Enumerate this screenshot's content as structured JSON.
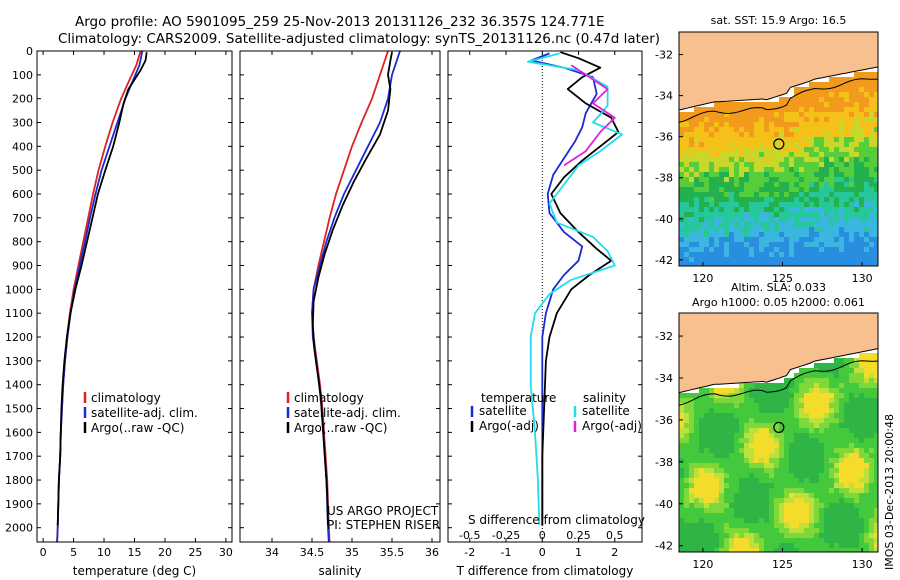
{
  "title_line1": "Argo profile: AO 5901095_259 25-Nov-2013 20131126_232 36.357S 124.771E",
  "title_line2": "Climatology: CARS2009. Satellite-adjusted climatology: synTS_20131126.nc (0.47d later)",
  "colors": {
    "climatology": "#dd2222",
    "satellite": "#1a2ad8",
    "argo": "#000000",
    "sat_salinity": "#22dcee",
    "argo_salinity": "#e020e0",
    "land": "#f7c08e"
  },
  "chart_data": [
    {
      "type": "line",
      "name": "temperature-profile",
      "xlabel": "temperature (deg C)",
      "ylabel": "",
      "xlim": [
        -1,
        31
      ],
      "ylim": [
        2060,
        0
      ],
      "y_inverted": true,
      "xticks": [
        0,
        5,
        10,
        15,
        20,
        25,
        30
      ],
      "yticks": [
        0,
        100,
        200,
        300,
        400,
        500,
        600,
        700,
        800,
        900,
        1000,
        1100,
        1200,
        1300,
        1400,
        1500,
        1600,
        1700,
        1800,
        1900,
        2000
      ],
      "legend": [
        "climatology",
        "satellite-adj. clim.",
        "Argo(..raw -QC)"
      ],
      "legend_position": "lower-right",
      "series": [
        {
          "name": "climatology",
          "color": "#dd2222",
          "points": [
            [
              16.0,
              0
            ],
            [
              15.3,
              60
            ],
            [
              14.2,
              120
            ],
            [
              12.8,
              200
            ],
            [
              11.4,
              300
            ],
            [
              10.2,
              400
            ],
            [
              9.1,
              500
            ],
            [
              8.2,
              600
            ],
            [
              7.4,
              700
            ],
            [
              6.6,
              800
            ],
            [
              5.8,
              900
            ],
            [
              5.0,
              1000
            ],
            [
              4.4,
              1100
            ],
            [
              3.9,
              1200
            ],
            [
              3.6,
              1300
            ],
            [
              3.3,
              1400
            ],
            [
              3.1,
              1500
            ],
            [
              2.9,
              1600
            ],
            [
              2.8,
              1700
            ],
            [
              2.6,
              1800
            ],
            [
              2.5,
              1900
            ],
            [
              2.4,
              2000
            ],
            [
              2.3,
              2060
            ]
          ]
        },
        {
          "name": "satellite-adj. clim.",
          "color": "#1a2ad8",
          "points": [
            [
              16.3,
              0
            ],
            [
              15.8,
              60
            ],
            [
              14.8,
              120
            ],
            [
              13.5,
              200
            ],
            [
              12.2,
              300
            ],
            [
              10.9,
              400
            ],
            [
              9.6,
              500
            ],
            [
              8.6,
              600
            ],
            [
              7.7,
              700
            ],
            [
              6.9,
              800
            ],
            [
              6.0,
              900
            ],
            [
              5.2,
              1000
            ],
            [
              4.5,
              1100
            ],
            [
              4.0,
              1200
            ],
            [
              3.6,
              1300
            ],
            [
              3.3,
              1400
            ],
            [
              3.1,
              1500
            ],
            [
              2.9,
              1600
            ],
            [
              2.8,
              1700
            ],
            [
              2.6,
              1800
            ],
            [
              2.5,
              1900
            ],
            [
              2.4,
              2000
            ],
            [
              2.3,
              2060
            ]
          ]
        },
        {
          "name": "Argo(..raw -QC)",
          "color": "#000000",
          "points": [
            [
              17.0,
              5
            ],
            [
              16.8,
              40
            ],
            [
              16.0,
              80
            ],
            [
              15.0,
              120
            ],
            [
              14.0,
              160
            ],
            [
              13.2,
              220
            ],
            [
              12.5,
              300
            ],
            [
              11.5,
              400
            ],
            [
              10.2,
              500
            ],
            [
              9.0,
              600
            ],
            [
              8.1,
              700
            ],
            [
              7.2,
              800
            ],
            [
              6.3,
              900
            ],
            [
              5.3,
              1000
            ],
            [
              4.5,
              1100
            ],
            [
              3.9,
              1200
            ],
            [
              3.5,
              1300
            ],
            [
              3.2,
              1400
            ],
            [
              3.0,
              1500
            ],
            [
              2.9,
              1600
            ],
            [
              2.8,
              1700
            ],
            [
              2.6,
              1800
            ],
            [
              2.5,
              1900
            ],
            [
              2.4,
              1990
            ]
          ]
        }
      ]
    },
    {
      "type": "line",
      "name": "salinity-profile",
      "xlabel": "salinity",
      "ylabel": "",
      "xlim": [
        33.6,
        36.1
      ],
      "ylim": [
        2060,
        0
      ],
      "y_inverted": true,
      "xticks": [
        34,
        34.5,
        35,
        35.5,
        36
      ],
      "xticklabels": [
        "34",
        "34.5",
        "35",
        "35.5",
        "36"
      ],
      "legend": [
        "climatology",
        "satellite-adj. clim.",
        "Argo(..raw -QC)"
      ],
      "legend_position": "lower-right",
      "annotation": [
        "US ARGO PROJECT",
        "PI: STEPHEN RISER"
      ],
      "series": [
        {
          "name": "climatology",
          "color": "#dd2222",
          "points": [
            [
              35.45,
              0
            ],
            [
              35.4,
              50
            ],
            [
              35.35,
              100
            ],
            [
              35.25,
              200
            ],
            [
              35.12,
              300
            ],
            [
              35.0,
              400
            ],
            [
              34.9,
              500
            ],
            [
              34.8,
              600
            ],
            [
              34.72,
              700
            ],
            [
              34.65,
              800
            ],
            [
              34.58,
              900
            ],
            [
              34.52,
              1000
            ],
            [
              34.5,
              1100
            ],
            [
              34.52,
              1200
            ],
            [
              34.56,
              1300
            ],
            [
              34.6,
              1400
            ],
            [
              34.63,
              1500
            ],
            [
              34.65,
              1600
            ],
            [
              34.67,
              1700
            ],
            [
              34.69,
              1800
            ],
            [
              34.7,
              1900
            ],
            [
              34.71,
              2000
            ],
            [
              34.72,
              2060
            ]
          ]
        },
        {
          "name": "satellite-adj. clim.",
          "color": "#1a2ad8",
          "points": [
            [
              35.6,
              0
            ],
            [
              35.55,
              50
            ],
            [
              35.5,
              100
            ],
            [
              35.45,
              200
            ],
            [
              35.35,
              300
            ],
            [
              35.2,
              400
            ],
            [
              35.05,
              500
            ],
            [
              34.9,
              600
            ],
            [
              34.78,
              700
            ],
            [
              34.68,
              800
            ],
            [
              34.6,
              900
            ],
            [
              34.52,
              1000
            ],
            [
              34.5,
              1100
            ],
            [
              34.51,
              1200
            ],
            [
              34.55,
              1300
            ],
            [
              34.59,
              1400
            ],
            [
              34.62,
              1500
            ],
            [
              34.64,
              1600
            ],
            [
              34.66,
              1700
            ],
            [
              34.68,
              1800
            ],
            [
              34.69,
              1900
            ],
            [
              34.7,
              2000
            ],
            [
              34.71,
              2060
            ]
          ]
        },
        {
          "name": "Argo(..raw -QC)",
          "color": "#000000",
          "points": [
            [
              35.5,
              5
            ],
            [
              35.48,
              40
            ],
            [
              35.45,
              100
            ],
            [
              35.48,
              160
            ],
            [
              35.45,
              250
            ],
            [
              35.35,
              350
            ],
            [
              35.18,
              450
            ],
            [
              35.02,
              550
            ],
            [
              34.88,
              650
            ],
            [
              34.76,
              750
            ],
            [
              34.66,
              850
            ],
            [
              34.58,
              950
            ],
            [
              34.52,
              1050
            ],
            [
              34.51,
              1150
            ],
            [
              34.53,
              1250
            ],
            [
              34.57,
              1350
            ],
            [
              34.61,
              1450
            ],
            [
              34.63,
              1550
            ],
            [
              34.65,
              1650
            ],
            [
              34.67,
              1750
            ],
            [
              34.69,
              1850
            ],
            [
              34.7,
              1990
            ]
          ]
        }
      ]
    },
    {
      "type": "line",
      "name": "difference-profile",
      "xlabel": "T difference from climatology",
      "xlabel_top": "S difference from climatology",
      "xlim": [
        -2.6,
        2.75
      ],
      "ylim": [
        2060,
        0
      ],
      "y_inverted": true,
      "xticks": [
        -2,
        -1,
        0,
        1,
        2
      ],
      "secondary_xticks": [
        -0.5,
        -0.25,
        0,
        0.25,
        0.5
      ],
      "secondary_xticklabels": [
        "-0.5",
        "-0.25",
        "0",
        "0.25",
        "0.5"
      ],
      "legend_left_title": "temperature",
      "legend_right_title": "salinity",
      "legend": [
        "satellite",
        "Argo(-adj)",
        "satellite",
        "Argo(-adj)"
      ],
      "series": [
        {
          "name": "temperature satellite",
          "color": "#1a2ad8",
          "points": [
            [
              0.2,
              10
            ],
            [
              -0.3,
              40
            ],
            [
              0.6,
              70
            ],
            [
              1.4,
              110
            ],
            [
              1.5,
              180
            ],
            [
              1.2,
              260
            ],
            [
              1.1,
              320
            ],
            [
              0.9,
              380
            ],
            [
              0.6,
              450
            ],
            [
              0.3,
              520
            ],
            [
              0.15,
              600
            ],
            [
              0.2,
              680
            ],
            [
              0.6,
              760
            ],
            [
              1.1,
              820
            ],
            [
              1.0,
              880
            ],
            [
              0.6,
              940
            ],
            [
              0.3,
              1000
            ],
            [
              0.1,
              1100
            ],
            [
              0.0,
              1200
            ],
            [
              0.0,
              1400
            ],
            [
              0.0,
              1600
            ],
            [
              0.0,
              1800
            ],
            [
              0.0,
              1990
            ]
          ]
        },
        {
          "name": "temperature Argo(-adj)",
          "color": "#000000",
          "points": [
            [
              0.5,
              5
            ],
            [
              1.0,
              30
            ],
            [
              1.6,
              70
            ],
            [
              1.1,
              110
            ],
            [
              0.7,
              160
            ],
            [
              1.2,
              220
            ],
            [
              1.9,
              280
            ],
            [
              2.1,
              340
            ],
            [
              1.6,
              400
            ],
            [
              1.1,
              460
            ],
            [
              0.6,
              530
            ],
            [
              0.25,
              600
            ],
            [
              0.5,
              680
            ],
            [
              1.0,
              760
            ],
            [
              1.5,
              830
            ],
            [
              1.9,
              880
            ],
            [
              1.3,
              940
            ],
            [
              0.8,
              1000
            ],
            [
              0.4,
              1100
            ],
            [
              0.2,
              1200
            ],
            [
              0.1,
              1300
            ],
            [
              0.05,
              1500
            ],
            [
              0.0,
              1700
            ],
            [
              0.0,
              1990
            ]
          ]
        },
        {
          "name": "salinity satellite",
          "color": "#22dcee",
          "points": [
            [
              0.12,
              10
            ],
            [
              -0.1,
              45
            ],
            [
              0.25,
              80
            ],
            [
              0.45,
              150
            ],
            [
              0.45,
              230
            ],
            [
              0.35,
              300
            ],
            [
              0.55,
              350
            ],
            [
              0.4,
              420
            ],
            [
              0.25,
              480
            ],
            [
              0.15,
              560
            ],
            [
              0.05,
              640
            ],
            [
              0.1,
              720
            ],
            [
              0.35,
              780
            ],
            [
              0.45,
              840
            ],
            [
              0.5,
              900
            ],
            [
              0.2,
              960
            ],
            [
              0.05,
              1020
            ],
            [
              -0.05,
              1100
            ],
            [
              -0.08,
              1200
            ],
            [
              -0.08,
              1400
            ],
            [
              -0.05,
              1600
            ],
            [
              -0.03,
              1800
            ],
            [
              -0.02,
              1990
            ]
          ]
        },
        {
          "name": "salinity Argo(-adj)",
          "color": "#e020e0",
          "points": [
            [
              0.2,
              60
            ],
            [
              0.3,
              100
            ],
            [
              0.45,
              160
            ],
            [
              0.35,
              220
            ],
            [
              0.5,
              280
            ],
            [
              0.4,
              340
            ],
            [
              0.3,
              420
            ],
            [
              0.15,
              480
            ]
          ]
        }
      ]
    },
    {
      "type": "heatmap",
      "name": "sst-map",
      "title": "sat. SST: 15.9 Argo: 16.5",
      "xlim": [
        118.5,
        131
      ],
      "ylim": [
        -42.3,
        -30.9
      ],
      "xticks": [
        120,
        125,
        130
      ],
      "yticks": [
        -32,
        -34,
        -36,
        -38,
        -40,
        -42
      ],
      "argo_location": [
        124.771,
        -36.357
      ]
    },
    {
      "type": "heatmap",
      "name": "sla-map",
      "title": "Altim. SLA: 0.033",
      "subtitle": "Argo h1000: 0.05 h2000: 0.061",
      "xlim": [
        118.5,
        131
      ],
      "ylim": [
        -42.3,
        -30.9
      ],
      "xticks": [
        120,
        125,
        130
      ],
      "yticks": [
        -32,
        -34,
        -36,
        -38,
        -40,
        -42
      ],
      "argo_location": [
        124.771,
        -36.357
      ]
    }
  ],
  "footer_stamp": "IMOS 03-Dec-2013 20:00:48"
}
